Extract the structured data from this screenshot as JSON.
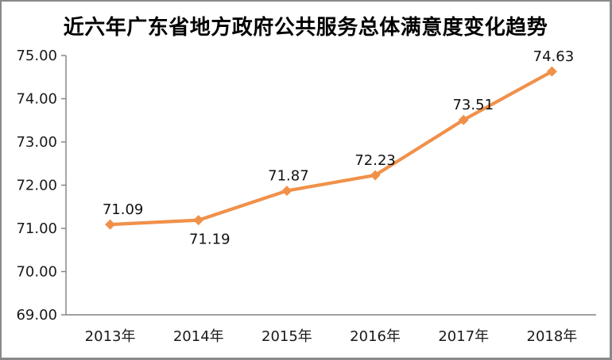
{
  "chart_data": {
    "type": "line",
    "title": "近六年广东省地方政府公共服务总体满意度变化趋势",
    "categories": [
      "2013年",
      "2014年",
      "2015年",
      "2016年",
      "2017年",
      "2018年"
    ],
    "values": [
      71.09,
      71.19,
      71.87,
      72.23,
      73.51,
      74.63
    ],
    "data_labels": [
      "71.09",
      "71.19",
      "71.87",
      "72.23",
      "73.51",
      "74.63"
    ],
    "label_positions": [
      "above",
      "below",
      "above",
      "above",
      "above",
      "above"
    ],
    "xlabel": "",
    "ylabel": "",
    "y_axis": {
      "min": 69,
      "max": 75,
      "step": 1,
      "tick_labels": [
        "69.00",
        "70.00",
        "71.00",
        "72.00",
        "73.00",
        "74.00",
        "75.00"
      ]
    },
    "grid": false,
    "legend_position": "none",
    "colors": {
      "line": "#F0914A",
      "marker": "#F0914A",
      "axis": "#808080",
      "text": "#1a1a1a",
      "background": "#ffffff"
    },
    "marker_shape": "diamond"
  }
}
